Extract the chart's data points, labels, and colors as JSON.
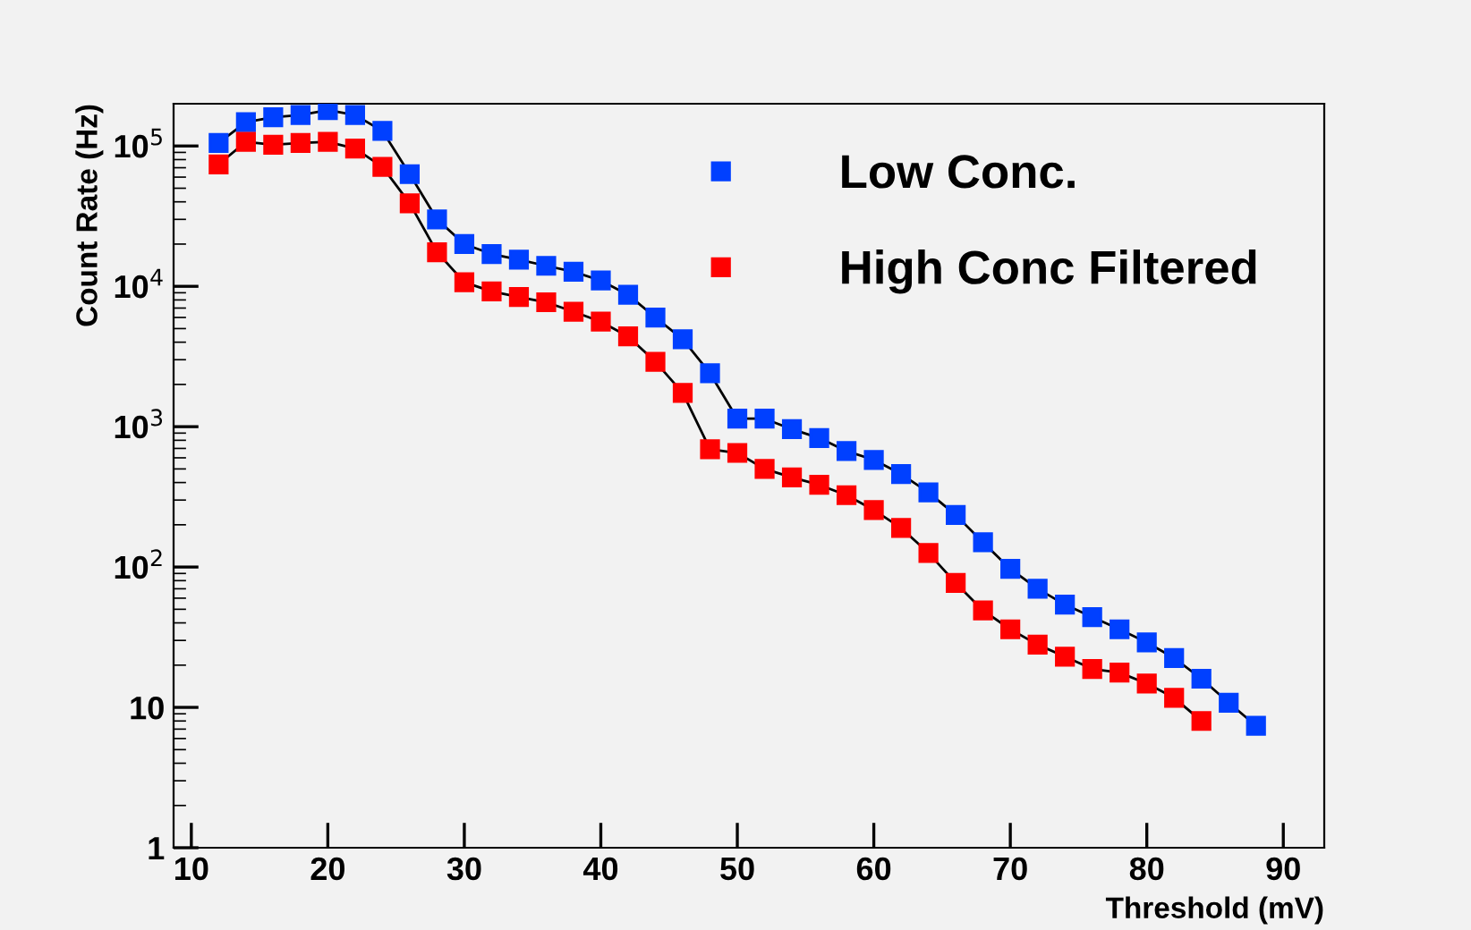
{
  "chart_data": {
    "type": "line",
    "xlabel": "Threshold (mV)",
    "ylabel": "Count Rate (Hz)",
    "x": [
      12,
      14,
      16,
      18,
      20,
      22,
      24,
      26,
      28,
      30,
      32,
      34,
      36,
      38,
      40,
      42,
      44,
      46,
      48,
      50,
      52,
      54,
      56,
      58,
      60,
      62,
      64,
      66,
      68,
      70,
      72,
      74,
      76,
      78,
      80,
      82,
      84,
      86,
      88
    ],
    "series": [
      {
        "name": "Low Conc.",
        "color": "#0040ff",
        "values": [
          105000,
          148000,
          160000,
          166000,
          180000,
          166000,
          128000,
          63000,
          30000,
          20000,
          17000,
          15500,
          14000,
          12700,
          11000,
          8700,
          6000,
          4200,
          2400,
          1140,
          1140,
          960,
          830,
          670,
          580,
          460,
          340,
          235,
          150,
          97,
          70,
          54,
          44,
          36,
          29,
          22.5,
          16,
          10.8,
          7.4
        ]
      },
      {
        "name": "High Conc Filtered",
        "color": "#ff0000",
        "values": [
          74000,
          107000,
          102000,
          105000,
          107000,
          96000,
          71000,
          39000,
          17500,
          10700,
          9200,
          8400,
          7700,
          6600,
          5600,
          4400,
          2900,
          1740,
          690,
          650,
          500,
          435,
          385,
          325,
          255,
          190,
          126,
          77,
          49,
          36,
          28,
          23,
          18.8,
          17.7,
          14.8,
          11.7,
          8.0,
          null,
          null
        ]
      }
    ],
    "log": "y",
    "marker": "square",
    "line_style": "solid",
    "legend": "top right",
    "grid": false,
    "xlim": [
      8.7,
      93
    ],
    "xticks": [
      10,
      20,
      30,
      40,
      50,
      60,
      70,
      80,
      90
    ],
    "ylim": [
      1,
      200000
    ],
    "yticks": [
      1,
      10,
      {
        "value": 100,
        "label": "10$^{2}$"
      },
      {
        "value": 1000,
        "label": "10$^{3}$"
      },
      {
        "value": 10000,
        "label": "10$^{4}$"
      },
      {
        "value": 100000,
        "label": "10$^{5}$"
      }
    ]
  }
}
